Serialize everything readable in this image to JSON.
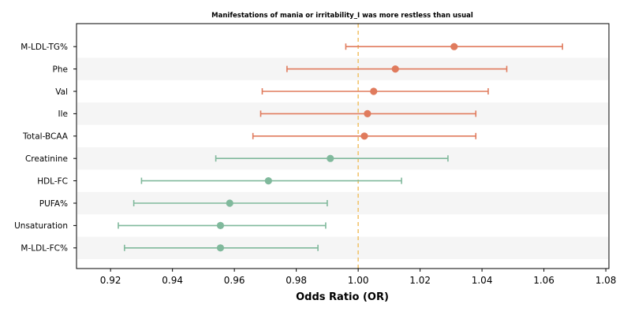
{
  "chart_data": {
    "type": "forest",
    "title": "Manifestations of mania or irritability_I was more restless than usual",
    "xlabel": "Odds Ratio (OR)",
    "xlim": [
      0.909,
      1.081
    ],
    "xticks": [
      0.92,
      0.94,
      0.96,
      0.98,
      1.0,
      1.02,
      1.04,
      1.06,
      1.08
    ],
    "xtick_labels": [
      "0.92",
      "0.94",
      "0.96",
      "0.98",
      "1.00",
      "1.02",
      "1.04",
      "1.06",
      "1.08"
    ],
    "reference_line": 1.0,
    "reference_line_style": "dashed",
    "row_striping": true,
    "grid": false,
    "colors": {
      "positive": "#e07b5d",
      "negative": "#80b99c",
      "reference": "#f2c46d",
      "stripe": "#f5f5f5"
    },
    "items": [
      {
        "label": "M-LDL-TG%",
        "or": 1.031,
        "lower": 0.996,
        "upper": 1.066,
        "direction": "positive"
      },
      {
        "label": "Phe",
        "or": 1.012,
        "lower": 0.977,
        "upper": 1.048,
        "direction": "positive"
      },
      {
        "label": "Val",
        "or": 1.005,
        "lower": 0.969,
        "upper": 1.042,
        "direction": "positive"
      },
      {
        "label": "Ile",
        "or": 1.003,
        "lower": 0.9685,
        "upper": 1.038,
        "direction": "positive"
      },
      {
        "label": "Total-BCAA",
        "or": 1.002,
        "lower": 0.966,
        "upper": 1.038,
        "direction": "positive"
      },
      {
        "label": "Creatinine",
        "or": 0.991,
        "lower": 0.954,
        "upper": 1.029,
        "direction": "negative"
      },
      {
        "label": "HDL-FC",
        "or": 0.971,
        "lower": 0.93,
        "upper": 1.014,
        "direction": "negative"
      },
      {
        "label": "PUFA%",
        "or": 0.9585,
        "lower": 0.9275,
        "upper": 0.99,
        "direction": "negative"
      },
      {
        "label": "Unsaturation",
        "or": 0.9555,
        "lower": 0.9225,
        "upper": 0.9895,
        "direction": "negative"
      },
      {
        "label": "M-LDL-FC%",
        "or": 0.9555,
        "lower": 0.9245,
        "upper": 0.987,
        "direction": "negative"
      }
    ]
  }
}
